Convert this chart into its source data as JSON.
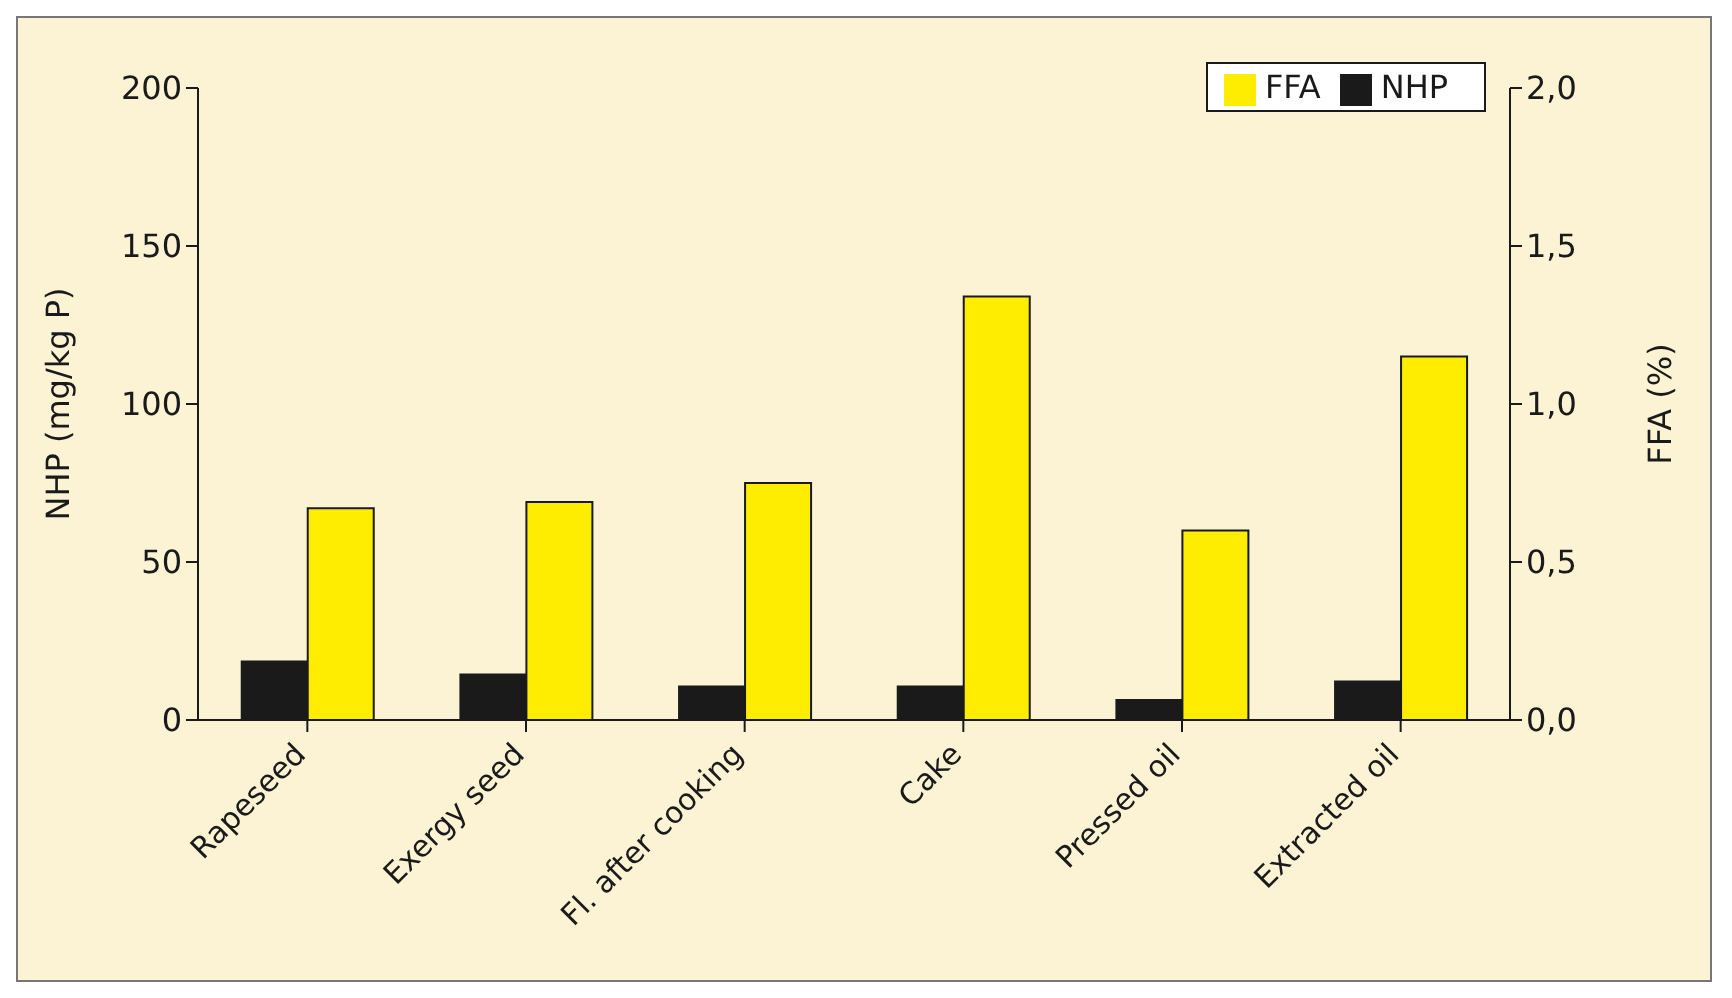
{
  "chart_data": {
    "type": "bar",
    "ylabel": "NHP (mg/kg P)",
    "y2label": "FFA (%)",
    "categories": [
      "Rapeseed",
      "Exergy seed",
      "Fl. after cooking",
      "Cake",
      "Pressed oil",
      "Extracted oil"
    ],
    "series": [
      {
        "name": "NHP",
        "color": "#1a1a1a",
        "values": [
          18.5,
          14.4,
          10.6,
          10.6,
          6.3,
          12.2
        ]
      },
      {
        "name": "FFA",
        "color": "#ffed00",
        "axis": "y2",
        "values": [
          0.67,
          0.69,
          0.75,
          1.34,
          0.6,
          1.15
        ]
      }
    ],
    "ylim": [
      0,
      200
    ],
    "yticks": [
      0,
      50,
      100,
      150,
      200
    ],
    "y2lim": [
      0,
      2
    ],
    "y2ticks": [
      {
        "value": 0,
        "label": "0,0"
      },
      {
        "value": 0.5,
        "label": "0,5"
      },
      {
        "value": 1,
        "label": "1,0"
      },
      {
        "value": 1.5,
        "label": "1,5"
      },
      {
        "value": 2,
        "label": "2,0"
      }
    ],
    "grid": false,
    "legend": "top right"
  }
}
